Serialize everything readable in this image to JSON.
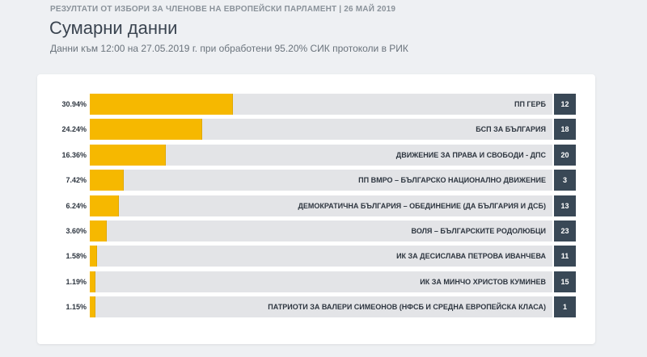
{
  "header": {
    "topline": "РЕЗУЛТАТИ ОТ ИЗБОРИ ЗА ЧЛЕНОВЕ НА ЕВРОПЕЙСКИ ПАРЛАМЕНТ | 26 МАЙ 2019",
    "title": "Сумарни данни",
    "subtitle": "Данни към 12:00 на 27.05.2019 г. при обработени 95.20% СИК протоколи в РИК"
  },
  "colors": {
    "bar": "#f6b800",
    "track": "#e3e4e7",
    "seat_badge": "#394856"
  },
  "chart_data": {
    "type": "bar",
    "orientation": "horizontal",
    "title": "Сумарни данни",
    "xlim": [
      0,
      100
    ],
    "grid": false,
    "categories": [
      "ПП ГЕРБ",
      "БСП ЗА БЪЛГАРИЯ",
      "ДВИЖЕНИЕ ЗА ПРАВА И СВОБОДИ - ДПС",
      "ПП ВМРО – БЪЛГАРСКО НАЦИОНАЛНО ДВИЖЕНИЕ",
      "ДЕМОКРАТИЧНА БЪЛГАРИЯ – ОБЕДИНЕНИЕ (ДА БЪЛГАРИЯ И ДСБ)",
      "ВОЛЯ – БЪЛГАРСКИТЕ РОДОЛЮБЦИ",
      "ИК ЗА ДЕСИСЛАВА ПЕТРОВА ИВАНЧЕВА",
      "ИК ЗА МИНЧО ХРИСТОВ КУМИНЕВ",
      "ПАТРИОТИ ЗА ВАЛЕРИ СИМЕОНОВ (НФСБ И СРЕДНА ЕВРОПЕЙСКА КЛАСА)"
    ],
    "values": [
      30.94,
      24.24,
      16.36,
      7.42,
      6.24,
      3.6,
      1.58,
      1.19,
      1.15
    ],
    "value_labels": [
      "30.94%",
      "24.24%",
      "16.36%",
      "7.42%",
      "6.24%",
      "3.60%",
      "1.58%",
      "1.19%",
      "1.15%"
    ],
    "badges": [
      "12",
      "18",
      "20",
      "3",
      "13",
      "23",
      "11",
      "15",
      "1"
    ]
  }
}
